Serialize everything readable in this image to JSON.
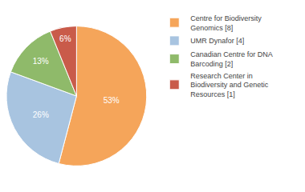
{
  "chart_data": {
    "type": "pie",
    "categories": [
      "Centre for Biodiversity\nGenomics [8]",
      "UMR Dynafor [4]",
      "Canadian Centre for DNA\nBarcoding [2]",
      "Research Center in\nBiodiversity and Genetic\nResources [1]"
    ],
    "values": [
      53,
      26,
      13,
      6
    ],
    "value_labels": [
      "53%",
      "26%",
      "13%",
      "6%"
    ],
    "colors": [
      "#F5A55A",
      "#A8C4E0",
      "#8FBA6A",
      "#C95B4A"
    ],
    "data_labels": true,
    "legend": "right"
  }
}
